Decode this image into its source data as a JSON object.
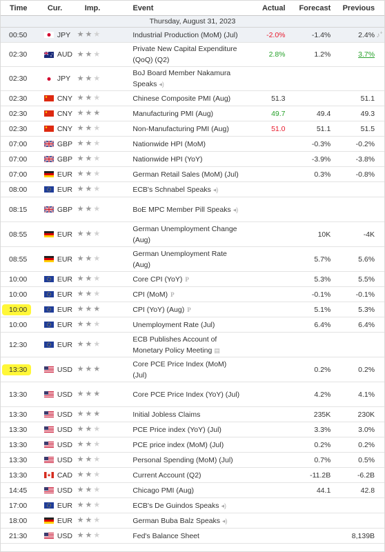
{
  "headers": {
    "time": "Time",
    "currency": "Cur.",
    "importance": "Imp.",
    "event": "Event",
    "actual": "Actual",
    "forecast": "Forecast",
    "previous": "Previous"
  },
  "date_label": "Thursday, August 31, 2023",
  "colors": {
    "negative": "#e8192c",
    "positive": "#26a12a",
    "highlight_row": "#eef1f5",
    "marker": "#fff500"
  },
  "rows": [
    {
      "time": "00:50",
      "cur": "JPY",
      "flag": "jp",
      "imp": 2,
      "event": "Industrial Production (MoM) (Jul)",
      "actual": "-2.0%",
      "actual_color": "neg",
      "forecast": "-1.4%",
      "previous": "2.4%",
      "highlight": true,
      "alert": true,
      "h": 22
    },
    {
      "time": "02:30",
      "cur": "AUD",
      "flag": "au",
      "imp": 2,
      "event": "Private New Capital Expenditure (QoQ) (Q2)",
      "actual": "2.8%",
      "actual_color": "pos",
      "forecast": "1.2%",
      "previous": "3.7%",
      "previous_color": "pos",
      "h": 35
    },
    {
      "time": "02:30",
      "cur": "JPY",
      "flag": "jp",
      "imp": 2,
      "event": "BoJ Board Member Nakamura Speaks",
      "speaker": true,
      "actual": "",
      "forecast": "",
      "previous": "",
      "h": 35
    },
    {
      "time": "02:30",
      "cur": "CNY",
      "flag": "cn",
      "imp": 2,
      "event": "Chinese Composite PMI (Aug)",
      "actual": "51.3",
      "actual_color": "",
      "forecast": "",
      "previous": "51.1",
      "h": 22
    },
    {
      "time": "02:30",
      "cur": "CNY",
      "flag": "cn",
      "imp": 3,
      "event": "Manufacturing PMI (Aug)",
      "actual": "49.7",
      "actual_color": "pos",
      "forecast": "49.4",
      "previous": "49.3",
      "h": 22
    },
    {
      "time": "02:30",
      "cur": "CNY",
      "flag": "cn",
      "imp": 2,
      "event": "Non-Manufacturing PMI (Aug)",
      "actual": "51.0",
      "actual_color": "neg",
      "forecast": "51.1",
      "previous": "51.5",
      "h": 22
    },
    {
      "time": "07:00",
      "cur": "GBP",
      "flag": "gb",
      "imp": 2,
      "event": "Nationwide HPI (MoM)",
      "actual": "",
      "forecast": "-0.3%",
      "previous": "-0.2%",
      "h": 22
    },
    {
      "time": "07:00",
      "cur": "GBP",
      "flag": "gb",
      "imp": 2,
      "event": "Nationwide HPI (YoY)",
      "actual": "",
      "forecast": "-3.9%",
      "previous": "-3.8%",
      "h": 22
    },
    {
      "time": "07:00",
      "cur": "EUR",
      "flag": "de",
      "imp": 2,
      "event": "German Retail Sales (MoM) (Jul)",
      "actual": "",
      "forecast": "0.3%",
      "previous": "-0.8%",
      "h": 22
    },
    {
      "time": "08:00",
      "cur": "EUR",
      "flag": "eu",
      "imp": 2,
      "event": "ECB's Schnabel Speaks",
      "speaker": true,
      "actual": "",
      "forecast": "",
      "previous": "",
      "h": 22
    },
    {
      "time": "08:15",
      "cur": "GBP",
      "flag": "gb",
      "imp": 2,
      "event": "BoE MPC Member Pill Speaks",
      "speaker": true,
      "actual": "",
      "forecast": "",
      "previous": "",
      "h": 36
    },
    {
      "time": "08:55",
      "cur": "EUR",
      "flag": "de",
      "imp": 2,
      "event": "German Unemployment Change (Aug)",
      "actual": "",
      "forecast": "10K",
      "previous": "-4K",
      "h": 36
    },
    {
      "time": "08:55",
      "cur": "EUR",
      "flag": "de",
      "imp": 2,
      "event": "German Unemployment Rate (Aug)",
      "actual": "",
      "forecast": "5.7%",
      "previous": "5.6%",
      "h": 36
    },
    {
      "time": "10:00",
      "cur": "EUR",
      "flag": "eu",
      "imp": 2,
      "event": "Core CPI (YoY)",
      "prelim": true,
      "actual": "",
      "forecast": "5.3%",
      "previous": "5.5%",
      "h": 22
    },
    {
      "time": "10:00",
      "cur": "EUR",
      "flag": "eu",
      "imp": 2,
      "event": "CPI (MoM)",
      "prelim": true,
      "actual": "",
      "forecast": "-0.1%",
      "previous": "-0.1%",
      "h": 22
    },
    {
      "time": "10:00",
      "cur": "EUR",
      "flag": "eu",
      "imp": 3,
      "event": "CPI (YoY) (Aug)",
      "prelim": true,
      "actual": "",
      "forecast": "5.1%",
      "previous": "5.3%",
      "marker": true,
      "h": 22
    },
    {
      "time": "10:00",
      "cur": "EUR",
      "flag": "eu",
      "imp": 2,
      "event": "Unemployment Rate (Jul)",
      "actual": "",
      "forecast": "6.4%",
      "previous": "6.4%",
      "h": 22
    },
    {
      "time": "12:30",
      "cur": "EUR",
      "flag": "eu",
      "imp": 2,
      "event": "ECB Publishes Account of Monetary Policy Meeting",
      "doc": true,
      "actual": "",
      "forecast": "",
      "previous": "",
      "h": 36
    },
    {
      "time": "13:30",
      "cur": "USD",
      "flag": "us",
      "imp": 3,
      "event": "Core PCE Price Index (MoM) (Jul)",
      "actual": "",
      "forecast": "0.2%",
      "previous": "0.2%",
      "marker": true,
      "h": 36
    },
    {
      "time": "13:30",
      "cur": "USD",
      "flag": "us",
      "imp": 3,
      "event": "Core PCE Price Index (YoY) (Jul)",
      "actual": "",
      "forecast": "4.2%",
      "previous": "4.1%",
      "h": 36
    },
    {
      "time": "13:30",
      "cur": "USD",
      "flag": "us",
      "imp": 3,
      "event": "Initial Jobless Claims",
      "actual": "",
      "forecast": "235K",
      "previous": "230K",
      "h": 22
    },
    {
      "time": "13:30",
      "cur": "USD",
      "flag": "us",
      "imp": 2,
      "event": "PCE Price index (YoY) (Jul)",
      "actual": "",
      "forecast": "3.3%",
      "previous": "3.0%",
      "h": 22
    },
    {
      "time": "13:30",
      "cur": "USD",
      "flag": "us",
      "imp": 2,
      "event": "PCE price index (MoM) (Jul)",
      "actual": "",
      "forecast": "0.2%",
      "previous": "0.2%",
      "h": 22
    },
    {
      "time": "13:30",
      "cur": "USD",
      "flag": "us",
      "imp": 2,
      "event": "Personal Spending (MoM) (Jul)",
      "actual": "",
      "forecast": "0.7%",
      "previous": "0.5%",
      "h": 22
    },
    {
      "time": "13:30",
      "cur": "CAD",
      "flag": "ca",
      "imp": 2,
      "event": "Current Account (Q2)",
      "actual": "",
      "forecast": "-11.2B",
      "previous": "-6.2B",
      "h": 22
    },
    {
      "time": "14:45",
      "cur": "USD",
      "flag": "us",
      "imp": 2,
      "event": "Chicago PMI (Aug)",
      "actual": "",
      "forecast": "44.1",
      "previous": "42.8",
      "h": 22
    },
    {
      "time": "17:00",
      "cur": "EUR",
      "flag": "eu",
      "imp": 2,
      "event": "ECB's De Guindos Speaks",
      "speaker": true,
      "actual": "",
      "forecast": "",
      "previous": "",
      "h": 22
    },
    {
      "time": "18:00",
      "cur": "EUR",
      "flag": "de",
      "imp": 2,
      "event": "German Buba Balz Speaks",
      "speaker": true,
      "actual": "",
      "forecast": "",
      "previous": "",
      "h": 22
    },
    {
      "time": "21:30",
      "cur": "USD",
      "flag": "us",
      "imp": 2,
      "event": "Fed's Balance Sheet",
      "actual": "",
      "forecast": "",
      "previous": "8,139B",
      "h": 22
    }
  ]
}
